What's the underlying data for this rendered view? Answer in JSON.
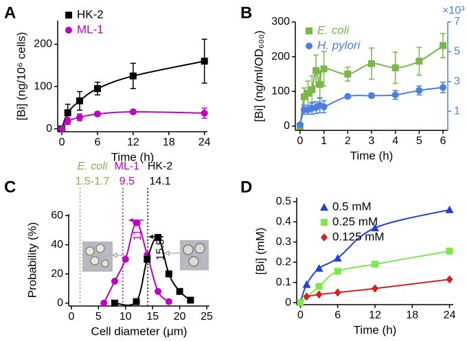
{
  "chart_data": [
    {
      "panel": "A",
      "type": "scatter",
      "xlabel": "Time (h)",
      "ylabel": "[Bi]  (ng/10⁶ cells)",
      "xlim": [
        -0.7,
        24.5
      ],
      "xticks": [
        0,
        6,
        12,
        18,
        24
      ],
      "ylim": [
        -7,
        256
      ],
      "yticks": [
        0,
        100,
        200
      ],
      "legend": "upper left",
      "series": [
        {
          "name": "HK-2",
          "color": "#000000",
          "marker": "square",
          "x": [
            0,
            1,
            3,
            6,
            12,
            24
          ],
          "values": [
            0,
            38,
            66,
            95,
            125,
            160
          ],
          "errors": [
            0,
            20,
            22,
            15,
            30,
            52
          ]
        },
        {
          "name": "ML-1",
          "color": "#c000c0",
          "marker": "circle",
          "x": [
            0,
            1,
            3,
            6,
            12,
            24
          ],
          "values": [
            0,
            18,
            27,
            35,
            40,
            37
          ],
          "errors": [
            0,
            8,
            8,
            5,
            4,
            12
          ]
        }
      ]
    },
    {
      "panel": "B",
      "type": "scatter",
      "xlabel": "Time (h)",
      "ylabel": "[Bi] (ng/ml/OD₆₀₀)",
      "y2label": "×10³",
      "xlim": [
        -0.2,
        6.2
      ],
      "xticks": [
        0,
        1,
        2,
        3,
        4,
        5,
        6
      ],
      "ylim": [
        -12,
        300
      ],
      "yticks": [
        0,
        100,
        200,
        300
      ],
      "y2lim": [
        -0.28,
        7
      ],
      "y2ticks": [
        1,
        3,
        5,
        7
      ],
      "y2color": "#4a7fe0",
      "legend": "upper left",
      "series": [
        {
          "name": "E. coli",
          "color": "#7ab648",
          "marker": "square",
          "x": [
            0,
            0.17,
            0.33,
            0.5,
            0.67,
            0.83,
            1,
            2,
            3,
            4,
            5,
            6
          ],
          "values": [
            0,
            85,
            95,
            105,
            160,
            120,
            165,
            150,
            180,
            168,
            187,
            232
          ],
          "errors": [
            0,
            25,
            35,
            40,
            45,
            40,
            50,
            20,
            45,
            45,
            40,
            35
          ]
        },
        {
          "name": "H. pylori",
          "color": "#4a7fe0",
          "marker": "circle",
          "axis": "y2",
          "x": [
            0,
            0.17,
            0.33,
            0.5,
            0.67,
            0.83,
            1,
            2,
            3,
            4,
            5,
            6
          ],
          "values": [
            0.1,
            1.1,
            1.1,
            1.2,
            1.25,
            1.4,
            1.3,
            2.0,
            2.05,
            2.1,
            2.4,
            2.6
          ],
          "errors": [
            0.1,
            0.3,
            0.3,
            0.4,
            0.4,
            0.5,
            0.4,
            0.1,
            0.15,
            0.3,
            0.3,
            0.35
          ]
        }
      ]
    },
    {
      "panel": "C",
      "type": "scatter",
      "xlabel": "Cell diameter (μm)",
      "ylabel": "Probability (%)",
      "xlim": [
        -0.5,
        25.5
      ],
      "xticks": [
        0,
        5,
        10,
        15,
        20,
        25
      ],
      "ylim": [
        -2,
        61
      ],
      "yticks": [
        0,
        20,
        40,
        60
      ],
      "series": [
        {
          "name": "ML-1",
          "color": "#c000c0",
          "marker": "circle",
          "x": [
            6,
            8,
            10,
            12,
            14,
            16,
            18
          ],
          "values": [
            0,
            15,
            30,
            55,
            33,
            8,
            1
          ]
        },
        {
          "name": "HK-2",
          "color": "#000000",
          "marker": "square",
          "x": [
            8,
            12,
            14,
            16,
            18,
            20,
            22
          ],
          "values": [
            0,
            1,
            30,
            45,
            20,
            8,
            2
          ]
        }
      ],
      "vlines": [
        {
          "name": "E. coli",
          "label": "1.5-1.7",
          "x": 1.6,
          "color": "#7ab648"
        },
        {
          "name": "ML-1",
          "label": "9.5",
          "x": 9.5,
          "color": "#c000c0"
        },
        {
          "name": "HK-2",
          "label": "14.1",
          "x": 14.1,
          "color": "#000000"
        }
      ],
      "peaks": [
        {
          "value": 11.8,
          "color": "#c000c0"
        },
        {
          "value": 15.5,
          "color": "#000000"
        }
      ]
    },
    {
      "panel": "D",
      "type": "scatter",
      "xlabel": "Time (h)",
      "ylabel": "[Bi] (mM)",
      "xlim": [
        -0.6,
        24.6
      ],
      "xticks": [
        0,
        6,
        12,
        18,
        24
      ],
      "ylim": [
        -0.01,
        0.52
      ],
      "yticks": [
        0,
        0.1,
        0.2,
        0.3,
        0.4,
        0.5
      ],
      "legend": "upper left",
      "series": [
        {
          "name": "0.5 mM",
          "color": "#1f3fd6",
          "marker": "triangle",
          "x": [
            0,
            1,
            3,
            6,
            12,
            24
          ],
          "values": [
            0,
            0.09,
            0.17,
            0.22,
            0.37,
            0.46
          ]
        },
        {
          "name": "0.25 mM",
          "color": "#7ee84a",
          "marker": "square",
          "x": [
            0,
            3,
            6,
            12,
            24
          ],
          "values": [
            0,
            0.08,
            0.155,
            0.19,
            0.255
          ]
        },
        {
          "name": "0.125 mM",
          "color": "#d42020",
          "marker": "diamond",
          "x": [
            1,
            3,
            6,
            12,
            24
          ],
          "values": [
            0.03,
            0.04,
            0.05,
            0.07,
            0.115
          ]
        }
      ]
    }
  ]
}
